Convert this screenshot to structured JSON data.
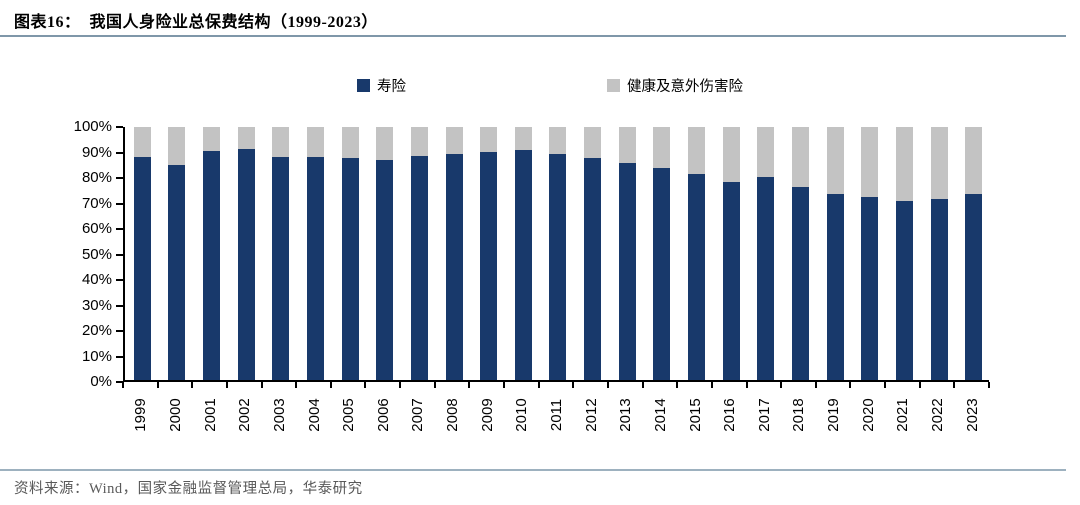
{
  "page": {
    "title": "图表16：  我国人身险业总保费结构（1999-2023）",
    "source": "资料来源：Wind，国家金融监督管理总局，华泰研究"
  },
  "colors": {
    "life_blue": "#18396B",
    "health_gray": "#C3C3C3",
    "rule_line": "#7F97A9",
    "axis": "#000000",
    "source_text": "#595959"
  },
  "chart_data": {
    "type": "bar",
    "stacked": true,
    "unit": "percent",
    "title": "我国人身险业总保费结构（1999-2023）",
    "categories": [
      "1999",
      "2000",
      "2001",
      "2002",
      "2003",
      "2004",
      "2005",
      "2006",
      "2007",
      "2008",
      "2009",
      "2010",
      "2011",
      "2012",
      "2013",
      "2014",
      "2015",
      "2016",
      "2017",
      "2018",
      "2019",
      "2020",
      "2021",
      "2022",
      "2023"
    ],
    "series": [
      {
        "name": "寿险",
        "color": "#18396B",
        "values": [
          88.0,
          85.0,
          90.5,
          91.2,
          88.3,
          88.0,
          87.7,
          87.0,
          88.6,
          89.4,
          90.3,
          91.0,
          89.2,
          87.7,
          85.6,
          83.7,
          81.3,
          78.4,
          80.2,
          76.1,
          73.4,
          72.3,
          70.9,
          71.7,
          73.4
        ]
      },
      {
        "name": "健康及意外伤害险",
        "color": "#C3C3C3",
        "values": [
          12.0,
          15.0,
          9.5,
          8.8,
          11.7,
          12.0,
          12.3,
          13.0,
          11.4,
          10.6,
          9.7,
          9.0,
          10.8,
          12.3,
          14.4,
          16.3,
          18.7,
          21.6,
          19.8,
          23.9,
          26.6,
          27.7,
          29.1,
          28.3,
          26.6
        ]
      }
    ],
    "ylim": [
      0,
      100
    ],
    "yticks": [
      "0%",
      "10%",
      "20%",
      "30%",
      "40%",
      "50%",
      "60%",
      "70%",
      "80%",
      "90%",
      "100%"
    ],
    "grid": false,
    "legend_position": "top"
  }
}
